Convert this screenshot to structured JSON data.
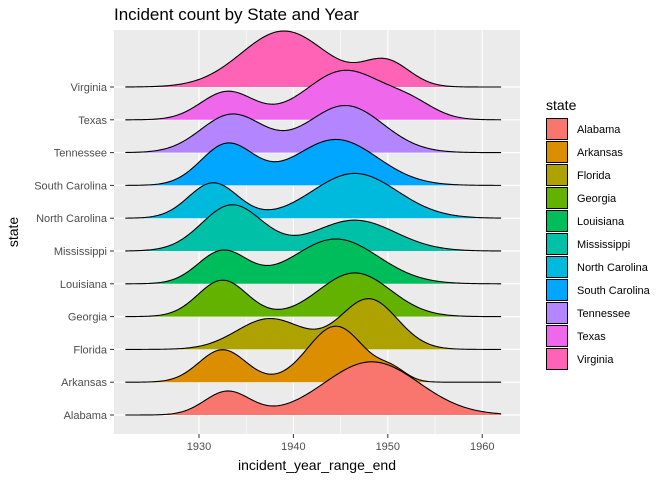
{
  "chart_data": {
    "type": "ridgeline",
    "title": "Incident count by State and Year",
    "xlabel": "incident_year_range_end",
    "ylabel": "state",
    "xlim": [
      1921,
      1964
    ],
    "x_ticks": [
      1930,
      1940,
      1950,
      1960
    ],
    "legend": {
      "title": "state",
      "position": "right"
    },
    "grid": true,
    "series": [
      {
        "name": "Alabama",
        "color": "#F8766D",
        "peaks": [
          [
            1933,
            2.4,
            0.42
          ],
          [
            1948.3,
            5.0,
            0.95
          ]
        ]
      },
      {
        "name": "Arkansas",
        "color": "#DB8E00",
        "peaks": [
          [
            1932.5,
            2.5,
            0.58
          ],
          [
            1944.5,
            3.0,
            1.0
          ],
          [
            1950.5,
            1.5,
            0.18
          ]
        ]
      },
      {
        "name": "Florida",
        "color": "#AEA200",
        "peaks": [
          [
            1937.5,
            3.5,
            0.55
          ],
          [
            1948,
            3.0,
            0.9
          ]
        ]
      },
      {
        "name": "Georgia",
        "color": "#64B200",
        "peaks": [
          [
            1932.5,
            2.6,
            0.65
          ],
          [
            1946.5,
            3.8,
            0.78
          ]
        ]
      },
      {
        "name": "Louisiana",
        "color": "#00BD5C",
        "peaks": [
          [
            1932.5,
            2.6,
            0.58
          ],
          [
            1944.5,
            4.5,
            0.8
          ]
        ]
      },
      {
        "name": "Mississippi",
        "color": "#00C1A7",
        "peaks": [
          [
            1933.5,
            3.2,
            0.82
          ],
          [
            1946.5,
            4.3,
            0.55
          ]
        ]
      },
      {
        "name": "North Carolina",
        "color": "#00BADE",
        "peaks": [
          [
            1931.5,
            2.6,
            0.63
          ],
          [
            1946.5,
            4.5,
            0.8
          ]
        ]
      },
      {
        "name": "South Carolina",
        "color": "#00A6FF",
        "peaks": [
          [
            1933,
            2.8,
            0.73
          ],
          [
            1944.5,
            4.4,
            0.82
          ]
        ]
      },
      {
        "name": "Tennessee",
        "color": "#B385FF",
        "peaks": [
          [
            1933.5,
            3.3,
            0.68
          ],
          [
            1945.5,
            4.0,
            0.84
          ]
        ]
      },
      {
        "name": "Texas",
        "color": "#EF67EB",
        "peaks": [
          [
            1933,
            2.8,
            0.5
          ],
          [
            1945.5,
            4.2,
            0.88
          ],
          [
            1952.5,
            2.5,
            0.22
          ]
        ]
      },
      {
        "name": "Virginia",
        "color": "#FF63B6",
        "peaks": [
          [
            1939,
            4.5,
            1.0
          ],
          [
            1949.8,
            2.5,
            0.45
          ]
        ]
      }
    ]
  }
}
